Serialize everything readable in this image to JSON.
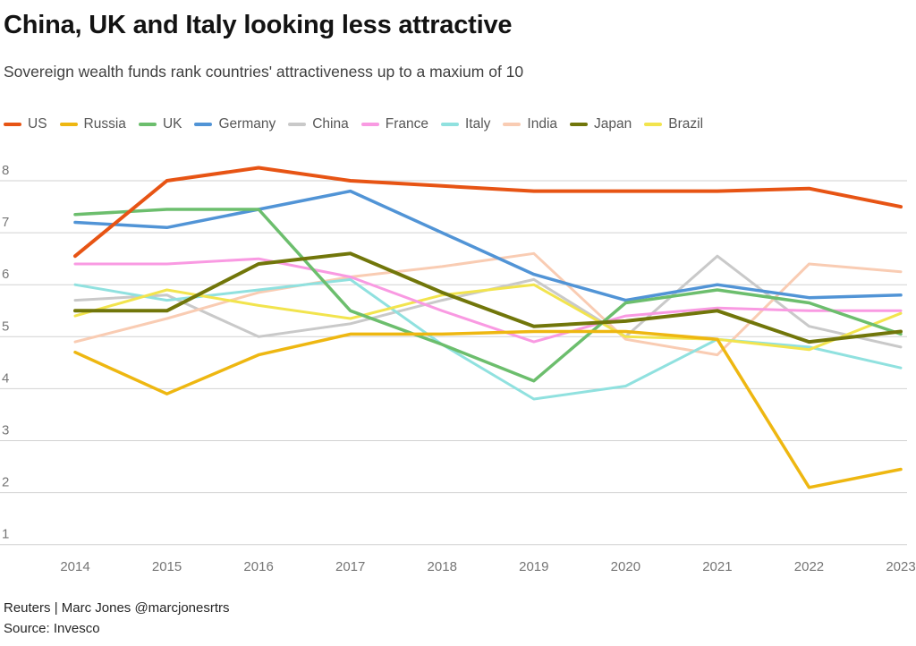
{
  "header": {
    "title": "China, UK and Italy looking less attractive",
    "subtitle": "Sovereign wealth funds rank countries' attractiveness up to a maxium of 10"
  },
  "footer": {
    "credit": "Reuters | Marc Jones @marcjonesrtrs",
    "source": "Source: Invesco"
  },
  "colors": {
    "gridline": "#d2d2d2",
    "tick_text": "#757575",
    "title_text": "#131313"
  },
  "chart_data": {
    "type": "line",
    "title": "China, UK and Italy looking less attractive",
    "subtitle": "Sovereign wealth funds rank countries' attractiveness up to a maxium of 10",
    "x": [
      2014,
      2015,
      2016,
      2017,
      2018,
      2019,
      2020,
      2021,
      2022,
      2023
    ],
    "xlabel": "",
    "ylabel": "",
    "ylim": [
      1,
      8
    ],
    "yticks": [
      1,
      2,
      3,
      4,
      5,
      6,
      7,
      8
    ],
    "grid": "horizontal",
    "legend_position": "top",
    "series": [
      {
        "name": "US",
        "color": "#e75414",
        "values": [
          6.55,
          8.0,
          8.25,
          8.0,
          7.9,
          7.8,
          7.8,
          7.8,
          7.85,
          7.5
        ]
      },
      {
        "name": "Russia",
        "color": "#eeb711",
        "values": [
          4.7,
          3.9,
          4.65,
          5.05,
          5.05,
          5.1,
          5.1,
          4.95,
          2.1,
          2.45
        ]
      },
      {
        "name": "UK",
        "color": "#6cbe6d",
        "values": [
          7.35,
          7.45,
          7.45,
          5.5,
          4.85,
          4.15,
          5.65,
          5.9,
          5.65,
          5.05
        ]
      },
      {
        "name": "Germany",
        "color": "#5194d6",
        "values": [
          7.2,
          7.1,
          7.45,
          7.8,
          7.0,
          6.2,
          5.7,
          6.0,
          5.75,
          5.8
        ]
      },
      {
        "name": "China",
        "color": "#c9c9c9",
        "values": [
          5.7,
          5.8,
          5.0,
          5.25,
          5.7,
          6.1,
          5.0,
          6.55,
          5.2,
          4.8
        ]
      },
      {
        "name": "France",
        "color": "#f99ae2",
        "values": [
          6.4,
          6.4,
          6.5,
          6.15,
          5.5,
          4.9,
          5.4,
          5.55,
          5.5,
          5.5
        ]
      },
      {
        "name": "Italy",
        "color": "#90e1df",
        "values": [
          6.0,
          5.7,
          5.9,
          6.1,
          4.85,
          3.8,
          4.05,
          4.95,
          4.8,
          4.4
        ]
      },
      {
        "name": "India",
        "color": "#f9ccb3",
        "values": [
          4.9,
          5.35,
          5.85,
          6.15,
          6.35,
          6.6,
          4.95,
          4.65,
          6.4,
          6.25
        ]
      },
      {
        "name": "Japan",
        "color": "#71760a",
        "values": [
          5.5,
          5.5,
          6.4,
          6.6,
          5.85,
          5.2,
          5.3,
          5.5,
          4.9,
          5.1
        ]
      },
      {
        "name": "Brazil",
        "color": "#f2e44e",
        "values": [
          5.4,
          5.9,
          5.6,
          5.35,
          5.8,
          6.0,
          5.0,
          4.95,
          4.75,
          5.45
        ]
      }
    ]
  }
}
